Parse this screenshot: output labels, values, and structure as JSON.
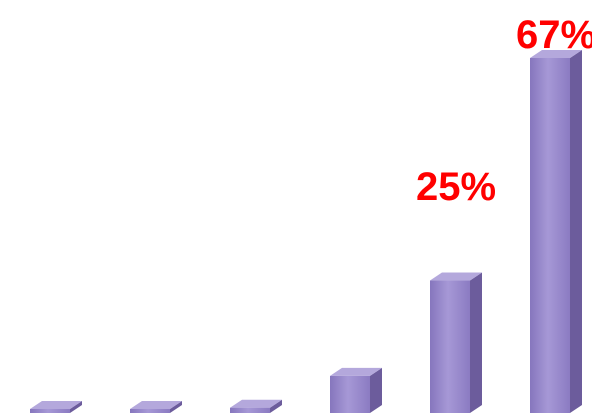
{
  "chart_data": {
    "type": "bar",
    "categories": [
      "",
      "",
      "",
      "",
      "",
      ""
    ],
    "values": [
      0,
      0,
      1,
      7,
      25,
      67
    ],
    "data_labels": [
      "",
      "",
      "",
      "",
      "25%",
      "67%"
    ],
    "ylim": [
      0,
      67
    ],
    "grid": false,
    "legend": "none",
    "bar_color": "#9585c8",
    "bar_shade_color": "#6c5c9c",
    "bar_top_color": "#b4a8dc",
    "label_color": "#ff0000"
  }
}
